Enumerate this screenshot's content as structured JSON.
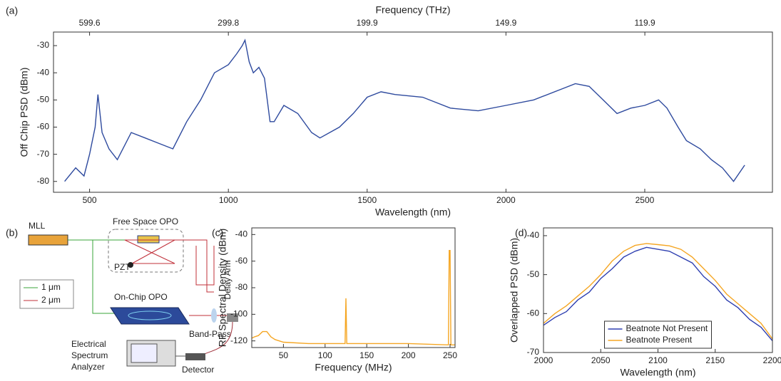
{
  "chart_data": [
    {
      "type": "line",
      "label": "(a)",
      "xlabel": "Wavelength (nm)",
      "ylabel": "Off Chip PSD (dBm)",
      "x2label": "Frequency (THz)",
      "x": [
        410,
        450,
        480,
        500,
        520,
        530,
        545,
        570,
        600,
        650,
        700,
        750,
        800,
        850,
        900,
        950,
        1000,
        1030,
        1050,
        1060,
        1075,
        1090,
        1110,
        1130,
        1150,
        1165,
        1200,
        1250,
        1300,
        1330,
        1400,
        1450,
        1500,
        1550,
        1600,
        1700,
        1800,
        1900,
        2000,
        2100,
        2200,
        2250,
        2300,
        2350,
        2400,
        2450,
        2500,
        2550,
        2580,
        2620,
        2650,
        2700,
        2740,
        2780,
        2820,
        2860
      ],
      "series": [
        {
          "color": "#2e4a9e",
          "values": [
            -80,
            -75,
            -78,
            -70,
            -60,
            -48,
            -62,
            -68,
            -72,
            -62,
            -64,
            -66,
            -68,
            -58,
            -50,
            -40,
            -37,
            -33,
            -30,
            -28,
            -36,
            -40,
            -38,
            -42,
            -58,
            -58,
            -52,
            -55,
            -62,
            -64,
            -60,
            -55,
            -49,
            -47,
            -48,
            -49,
            -53,
            -54,
            -52,
            -50,
            -46,
            -44,
            -45,
            -50,
            -55,
            -53,
            -52,
            -50,
            -53,
            -60,
            -65,
            -68,
            -72,
            -75,
            -80,
            -74
          ]
        }
      ],
      "xlim": [
        370,
        2960
      ],
      "ylim": [
        -84,
        -25
      ],
      "xticks": [
        500,
        1000,
        1500,
        2000,
        2500
      ],
      "yticks": [
        -80,
        -70,
        -60,
        -50,
        -40,
        -30
      ],
      "x2ticks": [
        599.6,
        299.8,
        199.9,
        149.9,
        119.9
      ]
    },
    {
      "type": "line",
      "label": "(c)",
      "xlabel": "Frequency (MHz)",
      "ylabel": "RF Spectral Density (dBm)",
      "x": [
        12,
        15,
        20,
        25,
        30,
        35,
        40,
        50,
        80,
        124,
        125,
        126,
        200,
        248,
        249,
        250,
        251,
        256
      ],
      "series": [
        {
          "color": "#f5a623",
          "values": [
            -118,
            -117,
            -116,
            -113,
            -113,
            -117,
            -119,
            -121,
            -122,
            -122,
            -88,
            -122,
            -122,
            -123,
            -52,
            -52,
            -123,
            -123
          ]
        }
      ],
      "xlim": [
        12,
        256
      ],
      "ylim": [
        -125,
        -35
      ],
      "xticks": [
        50,
        100,
        150,
        200,
        250
      ],
      "yticks": [
        -120,
        -100,
        -80,
        -60,
        -40
      ]
    },
    {
      "type": "line",
      "label": "(d)",
      "xlabel": "Wavelength (nm)",
      "ylabel": "Overlapped PSD (dBm)",
      "legend": "lower center",
      "x": [
        2000,
        2010,
        2020,
        2030,
        2040,
        2050,
        2060,
        2070,
        2080,
        2090,
        2100,
        2110,
        2120,
        2130,
        2140,
        2150,
        2160,
        2170,
        2180,
        2190,
        2200
      ],
      "series": [
        {
          "name": "Beatnote Not Present",
          "color": "#2e3fb0",
          "values": [
            -63,
            -61,
            -59.5,
            -56.5,
            -54.5,
            -51,
            -48.5,
            -45.5,
            -44,
            -43,
            -43.5,
            -44,
            -45.5,
            -47,
            -50.5,
            -53,
            -56.5,
            -58.5,
            -61.5,
            -63.5,
            -67
          ]
        },
        {
          "name": "Beatnote Present",
          "color": "#f5a623",
          "values": [
            -62.5,
            -60,
            -58,
            -55.5,
            -53,
            -50,
            -46.5,
            -44,
            -42.5,
            -42,
            -42.3,
            -42.6,
            -43.5,
            -45.5,
            -48.5,
            -51.5,
            -55,
            -57.5,
            -60,
            -62.5,
            -66.5
          ]
        }
      ],
      "xlim": [
        2000,
        2200
      ],
      "ylim": [
        -70,
        -38
      ],
      "xticks": [
        2000,
        2050,
        2100,
        2150,
        2200
      ],
      "yticks": [
        -70,
        -60,
        -50,
        -40
      ]
    }
  ],
  "diagram": {
    "label": "(b)",
    "mll": "MLL",
    "free_space_opo": "Free Space OPO",
    "pzt": "PZT",
    "delay_arm": "Delay Arm",
    "legend": [
      "1 μm",
      "2 μm"
    ],
    "on_chip_opo": "On-Chip OPO",
    "band_pass": "Band-Pass",
    "esa": [
      "Electrical",
      "Spectrum",
      "Analyzer"
    ],
    "detector": "Detector"
  }
}
